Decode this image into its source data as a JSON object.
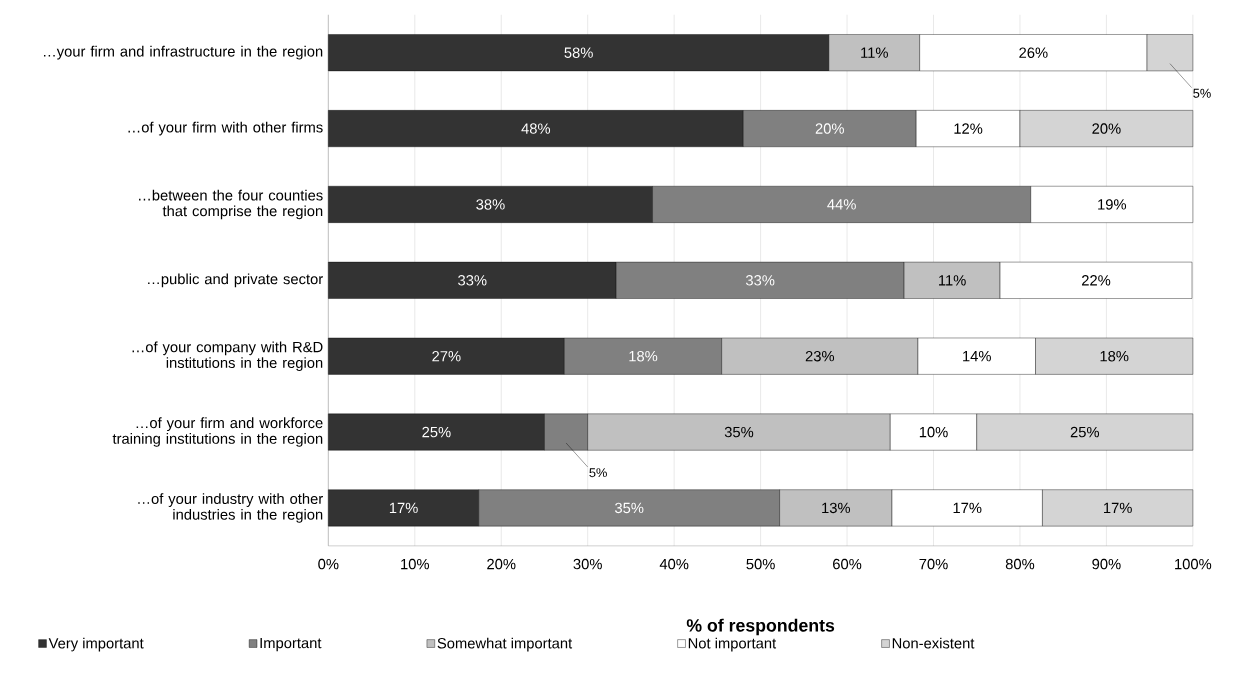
{
  "chart_data": {
    "type": "bar",
    "orientation": "horizontal",
    "stacked": true,
    "categories": [
      "…your firm and infrastructure in the region",
      "…of your firm with other firms",
      "…between the four counties that comprise the region",
      "…public and private sector",
      "…of your company with R&D institutions in the region",
      "…of your firm and workforce training institutions in the region",
      "…of your industry with other industries in the region"
    ],
    "series": [
      {
        "name": "Very important",
        "color": "#333333",
        "values": [
          57.9,
          48,
          37.5,
          33.3,
          27.3,
          25,
          17.4
        ],
        "value_labels": [
          "58%",
          "48%",
          "38%",
          "33%",
          "27%",
          "25%",
          "17%"
        ]
      },
      {
        "name": "Important",
        "color": "#808080",
        "values": [
          null,
          20,
          43.75,
          33.3,
          18.2,
          5,
          34.8
        ],
        "value_labels": [
          null,
          "20%",
          "44%",
          "33%",
          "18%",
          "5%",
          "35%"
        ]
      },
      {
        "name": "Somewhat important",
        "color": "#c0c0c0",
        "values": [
          10.5,
          null,
          null,
          11.1,
          22.7,
          35,
          13
        ],
        "value_labels": [
          "11%",
          null,
          null,
          "11%",
          "23%",
          "35%",
          "13%"
        ]
      },
      {
        "name": "Not important",
        "color": "#ffffff",
        "values": [
          26.3,
          12,
          18.75,
          22.2,
          13.6,
          10,
          17.4
        ],
        "value_labels": [
          "26%",
          "12%",
          "19%",
          "22%",
          "14%",
          "10%",
          "17%"
        ]
      },
      {
        "name": "Non-existent",
        "color": "#d4d4d4",
        "values": [
          5.3,
          20,
          null,
          null,
          18.2,
          25,
          17.4
        ],
        "value_labels": [
          "5%",
          "20%",
          null,
          null,
          "18%",
          "25%",
          "17%"
        ]
      }
    ],
    "xlim": [
      0,
      100
    ],
    "xticks": [
      {
        "value": 0,
        "label": "0%"
      },
      {
        "value": 10,
        "label": "10%"
      },
      {
        "value": 20,
        "label": "20%"
      },
      {
        "value": 30,
        "label": "30%"
      },
      {
        "value": 40,
        "label": "40%"
      },
      {
        "value": 50,
        "label": "50%"
      },
      {
        "value": 60,
        "label": "60%"
      },
      {
        "value": 70,
        "label": "70%"
      },
      {
        "value": 80,
        "label": "80%"
      },
      {
        "value": 90,
        "label": "90%"
      },
      {
        "value": 100,
        "label": "100%"
      }
    ],
    "xlabel": "% of respondents",
    "grid": "x",
    "legend": "bottom"
  }
}
